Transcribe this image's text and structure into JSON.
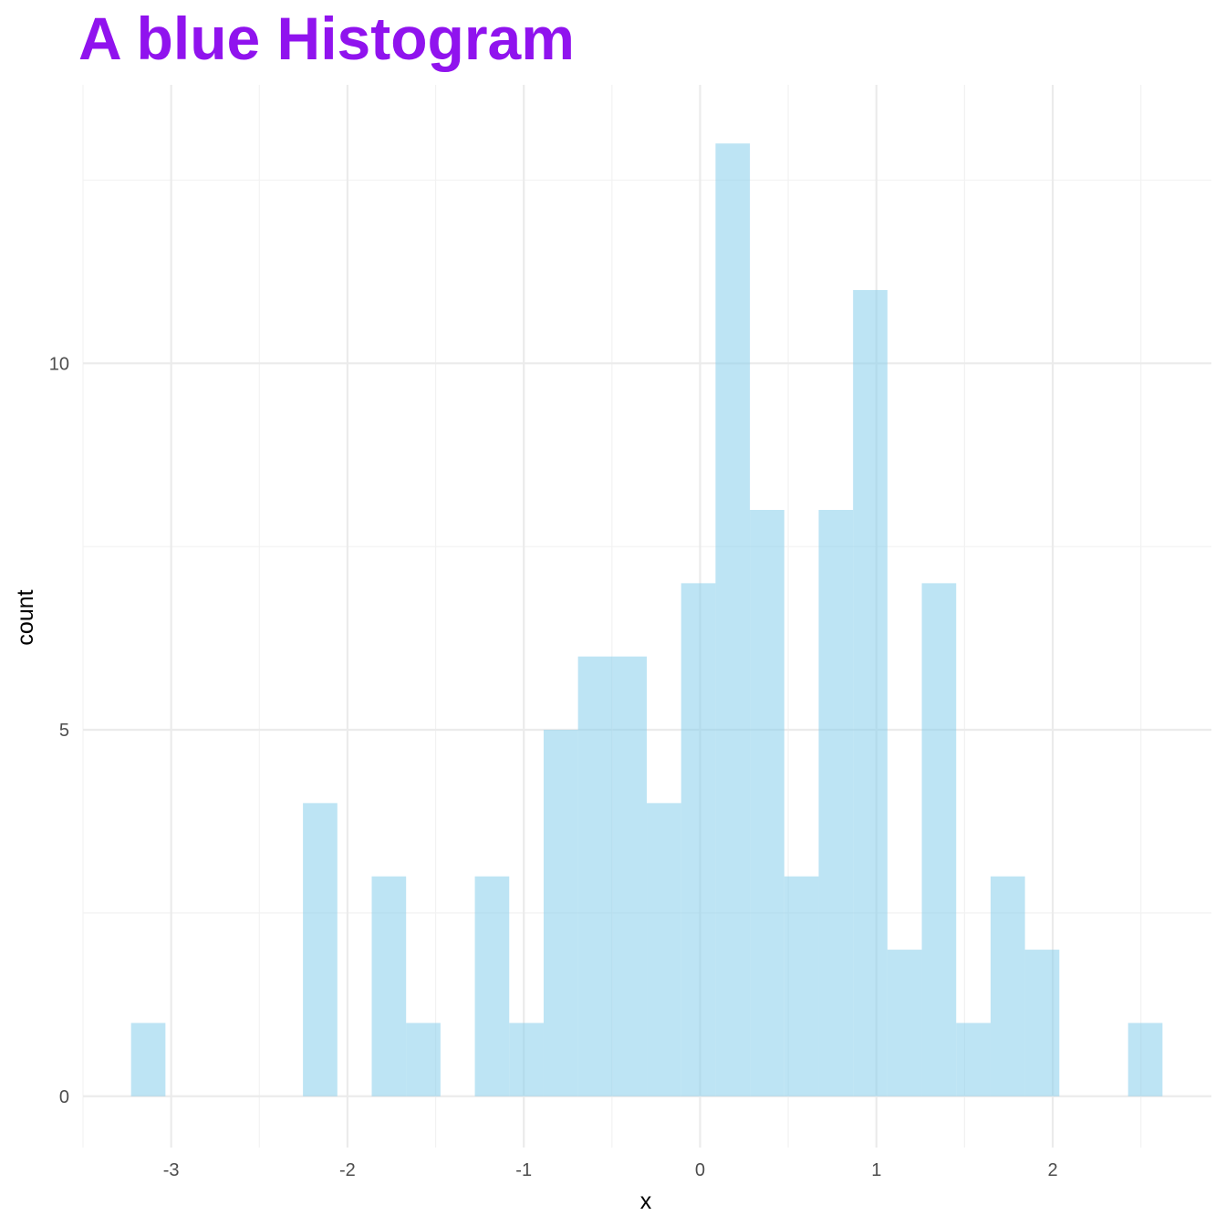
{
  "chart_data": {
    "type": "bar",
    "title": "A blue Histogram",
    "xlabel": "x",
    "ylabel": "count",
    "xlim": [
      -3.5,
      2.9
    ],
    "ylim": [
      -0.7,
      13.8
    ],
    "x_ticks": [
      -3,
      -2,
      -1,
      0,
      1,
      2
    ],
    "x_tick_labels": [
      "-3",
      "-2",
      "-1",
      "0",
      "1",
      "2"
    ],
    "y_ticks": [
      0,
      5,
      10
    ],
    "y_tick_labels": [
      "0",
      "5",
      "10"
    ],
    "bin_width": 0.195,
    "bins": [
      {
        "x": -3.13,
        "count": 1
      },
      {
        "x": -2.935,
        "count": 0
      },
      {
        "x": -2.74,
        "count": 0
      },
      {
        "x": -2.545,
        "count": 0
      },
      {
        "x": -2.35,
        "count": 0
      },
      {
        "x": -2.155,
        "count": 4
      },
      {
        "x": -1.96,
        "count": 0
      },
      {
        "x": -1.765,
        "count": 3
      },
      {
        "x": -1.57,
        "count": 1
      },
      {
        "x": -1.375,
        "count": 0
      },
      {
        "x": -1.18,
        "count": 3
      },
      {
        "x": -0.985,
        "count": 1
      },
      {
        "x": -0.79,
        "count": 5
      },
      {
        "x": -0.595,
        "count": 6
      },
      {
        "x": -0.4,
        "count": 6
      },
      {
        "x": -0.205,
        "count": 4
      },
      {
        "x": -0.01,
        "count": 7
      },
      {
        "x": 0.185,
        "count": 13
      },
      {
        "x": 0.38,
        "count": 8
      },
      {
        "x": 0.575,
        "count": 3
      },
      {
        "x": 0.77,
        "count": 8
      },
      {
        "x": 0.965,
        "count": 11
      },
      {
        "x": 1.16,
        "count": 2
      },
      {
        "x": 1.355,
        "count": 7
      },
      {
        "x": 1.55,
        "count": 1
      },
      {
        "x": 1.745,
        "count": 3
      },
      {
        "x": 1.94,
        "count": 2
      },
      {
        "x": 2.135,
        "count": 0
      },
      {
        "x": 2.33,
        "count": 0
      },
      {
        "x": 2.525,
        "count": 1
      }
    ],
    "grid": true,
    "legend": "none"
  },
  "colors": {
    "title": "#9013ee",
    "bar_fill": "#87ceeb",
    "bar_opacity": 0.55,
    "grid_major": "#ebebeb",
    "grid_minor": "#f2f2f2"
  }
}
